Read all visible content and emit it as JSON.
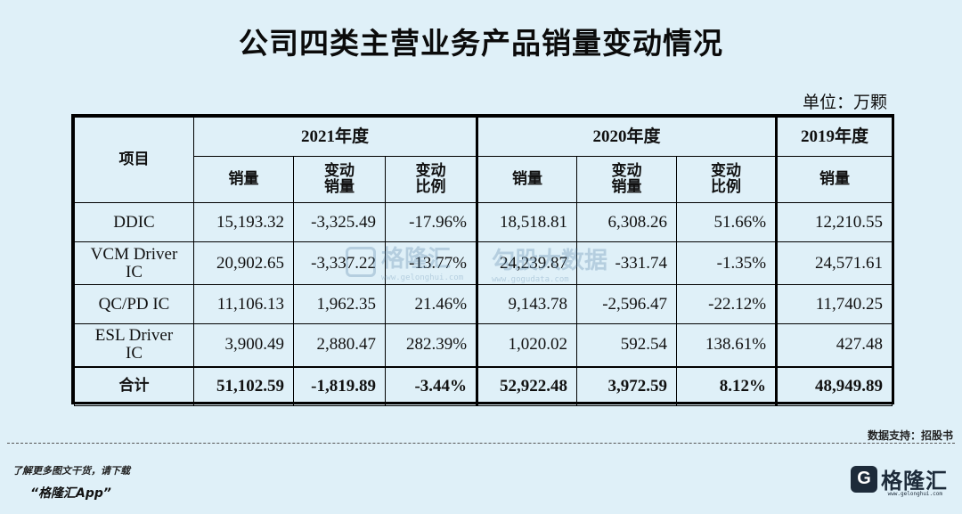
{
  "title": "公司四类主营业务产品销量变动情况",
  "unit": "单位：万颗",
  "table": {
    "header_item": "项目",
    "years": [
      "2021年度",
      "2020年度",
      "2019年度"
    ],
    "sub_headers": {
      "sales": "销量",
      "change_sales_1": "变动",
      "change_sales_2": "销量",
      "change_ratio_1": "变动",
      "change_ratio_2": "比例"
    },
    "rows": [
      {
        "item": "DDIC",
        "item2": "",
        "c": [
          "15,193.32",
          "-3,325.49",
          "-17.96%",
          "18,518.81",
          "6,308.26",
          "51.66%",
          "12,210.55"
        ]
      },
      {
        "item": "VCM Driver",
        "item2": "IC",
        "c": [
          "20,902.65",
          "-3,337.22",
          "-13.77%",
          "24,239.87",
          "-331.74",
          "-1.35%",
          "24,571.61"
        ]
      },
      {
        "item": "QC/PD IC",
        "item2": "",
        "c": [
          "11,106.13",
          "1,962.35",
          "21.46%",
          "9,143.78",
          "-2,596.47",
          "-22.12%",
          "11,740.25"
        ]
      },
      {
        "item": "ESL Driver",
        "item2": "IC",
        "c": [
          "3,900.49",
          "2,880.47",
          "282.39%",
          "1,020.02",
          "592.54",
          "138.61%",
          "427.48"
        ]
      }
    ],
    "total": {
      "item": "合计",
      "c": [
        "51,102.59",
        "-1,819.89",
        "-3.44%",
        "52,922.48",
        "3,972.59",
        "8.12%",
        "48,949.89"
      ]
    }
  },
  "watermark": {
    "brand": "格隆汇",
    "brand_url": "www.gelonghui.com",
    "data_brand": "勾股大数据",
    "data_url": "www.gogudata.com"
  },
  "source": "数据支持：招股书",
  "promo": {
    "line1": "了解更多图文干货，请下载",
    "line2": "“格隆汇App”"
  },
  "footer_brand": {
    "logo_letter": "G",
    "name": "格隆汇",
    "url": "www.gelonghui.com"
  }
}
